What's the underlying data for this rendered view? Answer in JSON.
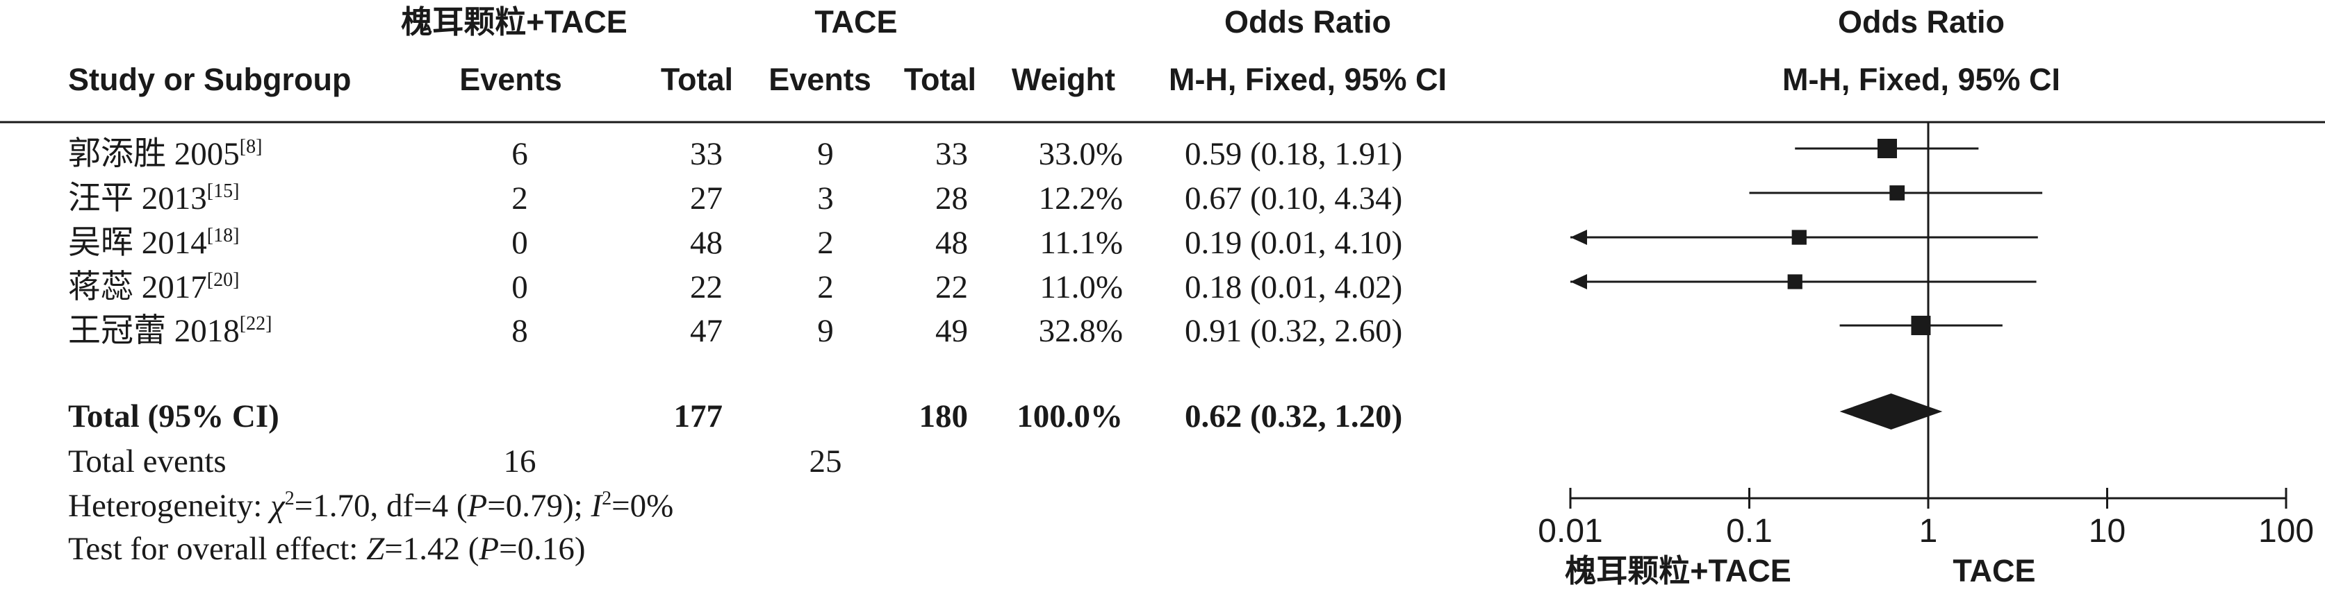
{
  "headers": {
    "exp_group": "槐耳颗粒+TACE",
    "ctl_group": "TACE",
    "or_title_left": "Odds Ratio",
    "or_title_right": "Odds Ratio",
    "study_col": "Study or Subgroup",
    "events_exp": "Events",
    "total_exp": "Total",
    "events_ctl": "Events",
    "total_ctl": "Total",
    "weight": "Weight",
    "method_left": "M-H, Fixed, 95% CI",
    "method_right": "M-H, Fixed, 95% CI"
  },
  "studies": [
    {
      "name": "郭添胜 2005",
      "ref": "[8]",
      "ev_e": "6",
      "tot_e": "33",
      "ev_c": "9",
      "tot_c": "33",
      "weight": "33.0%",
      "ci_text": "0.59 (0.18, 1.91)"
    },
    {
      "name": "汪平 2013",
      "ref": "[15]",
      "ev_e": "2",
      "tot_e": "27",
      "ev_c": "3",
      "tot_c": "28",
      "weight": "12.2%",
      "ci_text": "0.67 (0.10, 4.34)"
    },
    {
      "name": "吴晖 2014",
      "ref": "[18]",
      "ev_e": "0",
      "tot_e": "48",
      "ev_c": "2",
      "tot_c": "48",
      "weight": "11.1%",
      "ci_text": "0.19 (0.01, 4.10)"
    },
    {
      "name": "蒋蕊 2017",
      "ref": "[20]",
      "ev_e": "0",
      "tot_e": "22",
      "ev_c": "2",
      "tot_c": "22",
      "weight": "11.0%",
      "ci_text": "0.18 (0.01, 4.02)"
    },
    {
      "name": "王冠蕾 2018",
      "ref": "[22]",
      "ev_e": "8",
      "tot_e": "47",
      "ev_c": "9",
      "tot_c": "49",
      "weight": "32.8%",
      "ci_text": "0.91 (0.32, 2.60)"
    }
  ],
  "total": {
    "label": "Total (95% CI)",
    "tot_e": "177",
    "tot_c": "180",
    "weight": "100.0%",
    "ci_text": "0.62 (0.32, 1.20)"
  },
  "total_events": {
    "label": "Total events",
    "ev_e": "16",
    "ev_c": "25"
  },
  "heterogeneity": {
    "prefix": "Heterogeneity: ",
    "chi": "χ",
    "chi_val": "=1.70, df=4 (",
    "p": "P",
    "p_val": "=0.79); ",
    "i": "I",
    "i_val": "=0%"
  },
  "overall": {
    "prefix": "Test for overall effect: ",
    "z": "Z",
    "z_val": "=1.42 (",
    "p": "P",
    "p_val": "=0.16)"
  },
  "chart_data": {
    "type": "forest",
    "scale": "log",
    "xlim": [
      0.01,
      100
    ],
    "ticks": [
      "0.01",
      "0.1",
      "1",
      "10",
      "100"
    ],
    "tick_values": [
      0.01,
      0.1,
      1,
      10,
      100
    ],
    "null_line": 1,
    "favours_left": "槐耳颗粒+TACE",
    "favours_right": "TACE",
    "studies": [
      {
        "or": 0.59,
        "lo": 0.18,
        "hi": 1.91,
        "weight": 33.0
      },
      {
        "or": 0.67,
        "lo": 0.1,
        "hi": 4.34,
        "weight": 12.2
      },
      {
        "or": 0.19,
        "lo": 0.01,
        "hi": 4.1,
        "weight": 11.1
      },
      {
        "or": 0.18,
        "lo": 0.01,
        "hi": 4.02,
        "weight": 11.0
      },
      {
        "or": 0.91,
        "lo": 0.32,
        "hi": 2.6,
        "weight": 32.8
      }
    ],
    "pooled": {
      "or": 0.62,
      "lo": 0.32,
      "hi": 1.2
    }
  }
}
